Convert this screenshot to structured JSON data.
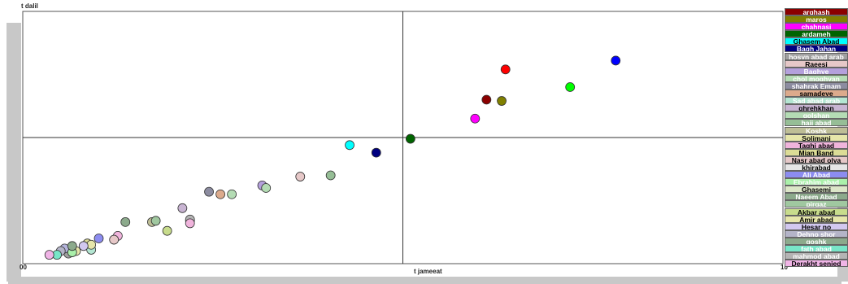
{
  "chart_data": {
    "type": "scatter",
    "title": "",
    "xlabel": "t jameeat",
    "ylabel": "t dalil",
    "xlim": [
      0,
      10
    ],
    "ylim": [
      0,
      10
    ],
    "x_tick_labels": [
      "00",
      "10"
    ],
    "grid": false,
    "crosshair_lines": {
      "x": 5,
      "y": 5
    },
    "legend_position": "right",
    "points": [
      {
        "name": "arghash",
        "color": "#8b0000",
        "x": 6.1,
        "y": 6.5
      },
      {
        "name": "maros",
        "color": "#808000",
        "x": 6.3,
        "y": 6.45
      },
      {
        "name": "chahnasi",
        "color": "#ff00ff",
        "x": 5.95,
        "y": 5.75
      },
      {
        "name": "ardameh",
        "color": "#006400",
        "x": 5.1,
        "y": 4.95
      },
      {
        "name": "Ghasem Abad",
        "color": "#00ffff",
        "x": 4.3,
        "y": 4.7
      },
      {
        "name": "Bagh Jahan",
        "color": "#000080",
        "x": 4.65,
        "y": 4.4
      },
      {
        "name": "hosyn abad arab",
        "color": "#a0a0a0",
        "x": 0.6,
        "y": 0.4
      },
      {
        "name": "Raeesi",
        "color": "#e6c8c8",
        "x": 3.65,
        "y": 3.45
      },
      {
        "name": "Baghye",
        "color": "#b4a0dc",
        "x": 3.15,
        "y": 3.1
      },
      {
        "name": "chol moghyan",
        "color": "#b4dcb4",
        "x": 2.75,
        "y": 2.75
      },
      {
        "name": "shahrak Emam",
        "color": "#8c8ca0",
        "x": 2.45,
        "y": 2.85
      },
      {
        "name": "samadeye",
        "color": "#dcaa8c",
        "x": 2.6,
        "y": 2.75
      },
      {
        "name": "Sad abad arab",
        "color": "#b4e6d2",
        "x": 0.9,
        "y": 0.55
      },
      {
        "name": "ghrehkhan",
        "color": "#c8b4d2",
        "x": 2.1,
        "y": 2.2
      },
      {
        "name": "golshan",
        "color": "#b4dcb4",
        "x": 3.2,
        "y": 3.0
      },
      {
        "name": "haji abad",
        "color": "#96be96",
        "x": 4.05,
        "y": 3.5
      },
      {
        "name": "Koshk",
        "color": "#bebe96",
        "x": 1.7,
        "y": 1.65
      },
      {
        "name": "Solimani",
        "color": "#e6e6aa",
        "x": 0.7,
        "y": 0.5
      },
      {
        "name": "Taghi abad",
        "color": "#f0b4dc",
        "x": 1.25,
        "y": 1.1
      },
      {
        "name": "Mian Band",
        "color": "#dcdc96",
        "x": 0.85,
        "y": 0.8
      },
      {
        "name": "Nasr abad olya",
        "color": "#e6c8c8",
        "x": 1.2,
        "y": 0.95
      },
      {
        "name": "khirabad",
        "color": "#b4b4dc",
        "x": 0.55,
        "y": 0.6
      },
      {
        "name": "Ali Abad",
        "color": "#8c8cf0",
        "x": 1.0,
        "y": 1.0
      },
      {
        "name": "Ebrahim abad",
        "color": "#aaf0aa",
        "x": 0.65,
        "y": 0.45
      },
      {
        "name": "Ghasemi",
        "color": "#dce6c8",
        "x": 2.2,
        "y": 1.7
      },
      {
        "name": "Naeem Abad",
        "color": "#8caa8c",
        "x": 1.35,
        "y": 1.65
      },
      {
        "name": "pirgaz",
        "color": "#a0c8a0",
        "x": 1.75,
        "y": 1.7
      },
      {
        "name": "Akbar abad",
        "color": "#c8dc8c",
        "x": 1.9,
        "y": 1.3
      },
      {
        "name": "Amir abad",
        "color": "#e6e6aa",
        "x": 0.9,
        "y": 0.75
      },
      {
        "name": "Hesar no",
        "color": "#d2c8f0",
        "x": 0.8,
        "y": 0.7
      },
      {
        "name": "Dehno shor",
        "color": "#b4b4c8",
        "x": 0.5,
        "y": 0.5
      },
      {
        "name": "goshk",
        "color": "#8caa8c",
        "x": 0.65,
        "y": 0.7
      },
      {
        "name": "fath abad",
        "color": "#78e6c8",
        "x": 0.45,
        "y": 0.35
      },
      {
        "name": "mahmod abad",
        "color": "#b4b4b4",
        "x": 2.2,
        "y": 1.75
      },
      {
        "name": "Derakht senjed",
        "color": "#f0b4e6",
        "x": 0.35,
        "y": 0.35
      },
      {
        "name": "",
        "color": "#00ff00",
        "x": 7.2,
        "y": 7.0
      },
      {
        "name": "",
        "color": "#0000ff",
        "x": 7.8,
        "y": 8.05
      },
      {
        "name": "",
        "color": "#ff0000",
        "x": 6.35,
        "y": 7.7
      },
      {
        "name": "",
        "color": "#f0b4dc",
        "x": 2.2,
        "y": 1.6
      }
    ],
    "legend": [
      {
        "label": "arghash",
        "bg": "#8b0000",
        "fg": "#ffffff"
      },
      {
        "label": "maros",
        "bg": "#808000",
        "fg": "#ffffff"
      },
      {
        "label": "chahnasi",
        "bg": "#ff00ff",
        "fg": "#ffffff"
      },
      {
        "label": "ardameh",
        "bg": "#006400",
        "fg": "#ffffff"
      },
      {
        "label": "Ghasem Abad",
        "bg": "#00ffff",
        "fg": "#000000"
      },
      {
        "label": "Bagh Jahan",
        "bg": "#000080",
        "fg": "#ffffff"
      },
      {
        "label": "hosyn abad arab",
        "bg": "#a0a0a0",
        "fg": "#ffffff"
      },
      {
        "label": "Raeesi",
        "bg": "#e6c8c8",
        "fg": "#000000"
      },
      {
        "label": "Baghye",
        "bg": "#b4a0dc",
        "fg": "#ffffff"
      },
      {
        "label": "chol moghyan",
        "bg": "#b4dcb4",
        "fg": "#ffffff"
      },
      {
        "label": "shahrak Emam",
        "bg": "#8c8ca0",
        "fg": "#ffffff"
      },
      {
        "label": "samadeye",
        "bg": "#dcaa8c",
        "fg": "#000000"
      },
      {
        "label": "Sad abad arab",
        "bg": "#b4e6d2",
        "fg": "#ffffff"
      },
      {
        "label": "ghrehkhan",
        "bg": "#c8b4d2",
        "fg": "#000000"
      },
      {
        "label": "golshan",
        "bg": "#b4dcb4",
        "fg": "#ffffff"
      },
      {
        "label": "haji abad",
        "bg": "#96be96",
        "fg": "#ffffff"
      },
      {
        "label": "Koshk",
        "bg": "#bebe96",
        "fg": "#ffffff"
      },
      {
        "label": "Solimani",
        "bg": "#e6e6aa",
        "fg": "#000000"
      },
      {
        "label": "Taghi abad",
        "bg": "#f0b4dc",
        "fg": "#000000"
      },
      {
        "label": "Mian Band",
        "bg": "#dcdc96",
        "fg": "#000000"
      },
      {
        "label": "Nasr abad olya",
        "bg": "#e6c8c8",
        "fg": "#000000"
      },
      {
        "label": "khirabad",
        "bg": "#e6e6e6",
        "fg": "#000000"
      },
      {
        "label": "Ali Abad",
        "bg": "#8c8cf0",
        "fg": "#ffffff"
      },
      {
        "label": "Ebrahim abad",
        "bg": "#aaf0aa",
        "fg": "#ffffff"
      },
      {
        "label": "Ghasemi",
        "bg": "#dce6c8",
        "fg": "#000000"
      },
      {
        "label": "Naeem Abad",
        "bg": "#8caa8c",
        "fg": "#ffffff"
      },
      {
        "label": "pirgaz",
        "bg": "#a0c8a0",
        "fg": "#ffffff"
      },
      {
        "label": "Akbar abad",
        "bg": "#c8dc8c",
        "fg": "#000000"
      },
      {
        "label": "Amir abad",
        "bg": "#e6e6aa",
        "fg": "#000000"
      },
      {
        "label": "Hesar no",
        "bg": "#d2c8f0",
        "fg": "#000000"
      },
      {
        "label": "Dehno shor",
        "bg": "#b4b4c8",
        "fg": "#ffffff"
      },
      {
        "label": "goshk",
        "bg": "#8caa8c",
        "fg": "#ffffff"
      },
      {
        "label": "fath abad",
        "bg": "#78e6c8",
        "fg": "#ffffff"
      },
      {
        "label": "mahmod abad",
        "bg": "#b4b4b4",
        "fg": "#ffffff"
      },
      {
        "label": "Derakht senjed",
        "bg": "#f0b4e6",
        "fg": "#000000"
      }
    ]
  }
}
